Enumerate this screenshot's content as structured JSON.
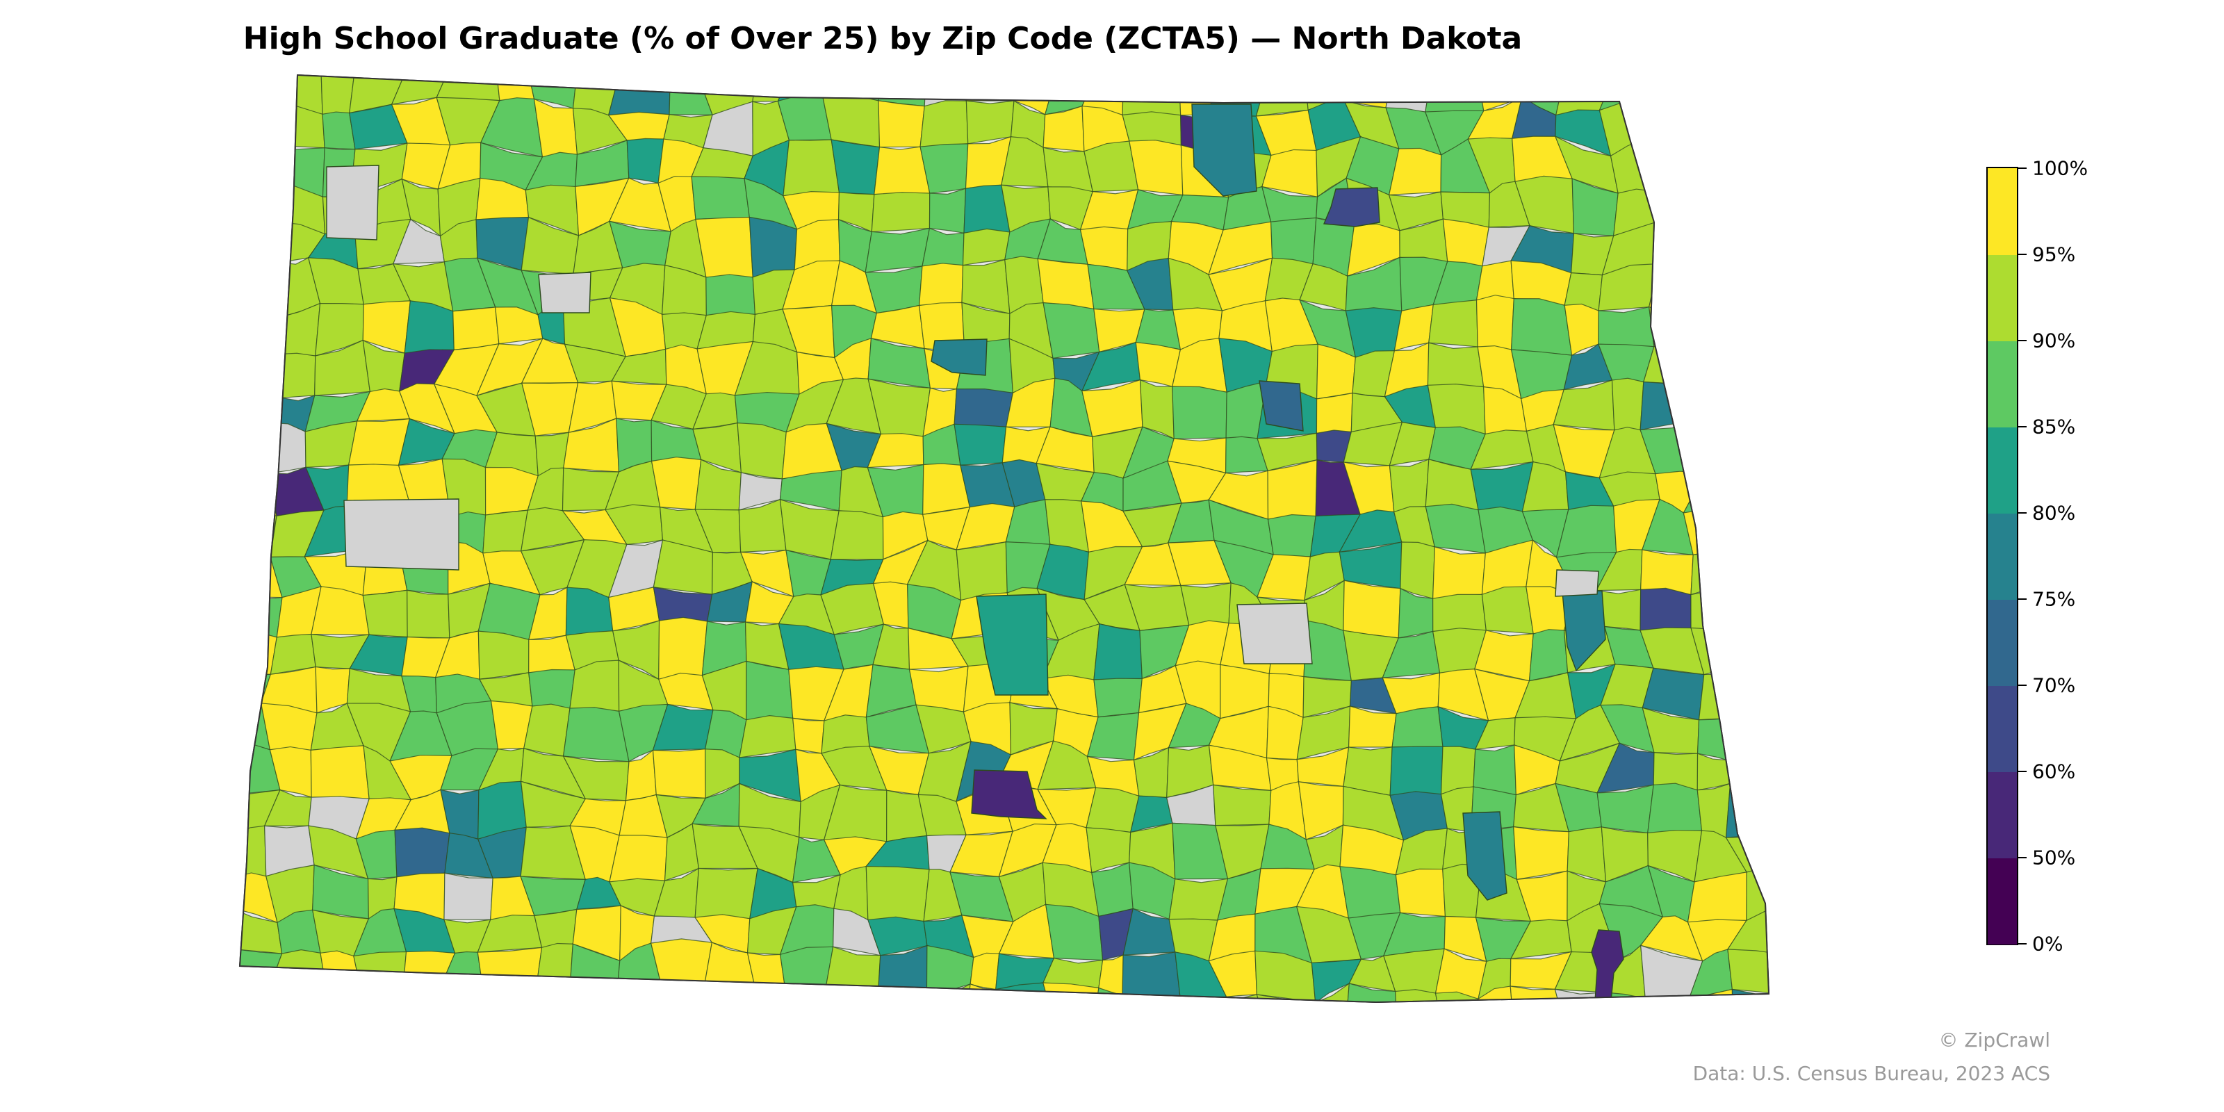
{
  "title": "High School Graduate (% of Over 25) by Zip Code (ZCTA5) — North Dakota",
  "legend": {
    "ticks": [
      "0%",
      "50%",
      "60%",
      "70%",
      "75%",
      "80%",
      "85%",
      "90%",
      "95%",
      "100%"
    ],
    "bins": [
      {
        "range": "0–50%",
        "color": "#440154"
      },
      {
        "range": "50–60%",
        "color": "#482878"
      },
      {
        "range": "60–70%",
        "color": "#3e4a89"
      },
      {
        "range": "70–75%",
        "color": "#31688e"
      },
      {
        "range": "75–80%",
        "color": "#26828e"
      },
      {
        "range": "80–85%",
        "color": "#1fa187"
      },
      {
        "range": "85–90%",
        "color": "#5ec962"
      },
      {
        "range": "90–95%",
        "color": "#addc30"
      },
      {
        "range": "95–100%",
        "color": "#fde725"
      }
    ],
    "no_data_color": "#d3d3d3",
    "outside_color": "#e8e8e8"
  },
  "credits": {
    "brand": "© ZipCrawl",
    "source": "Data: U.S. Census Bureau, 2023 ACS"
  }
}
